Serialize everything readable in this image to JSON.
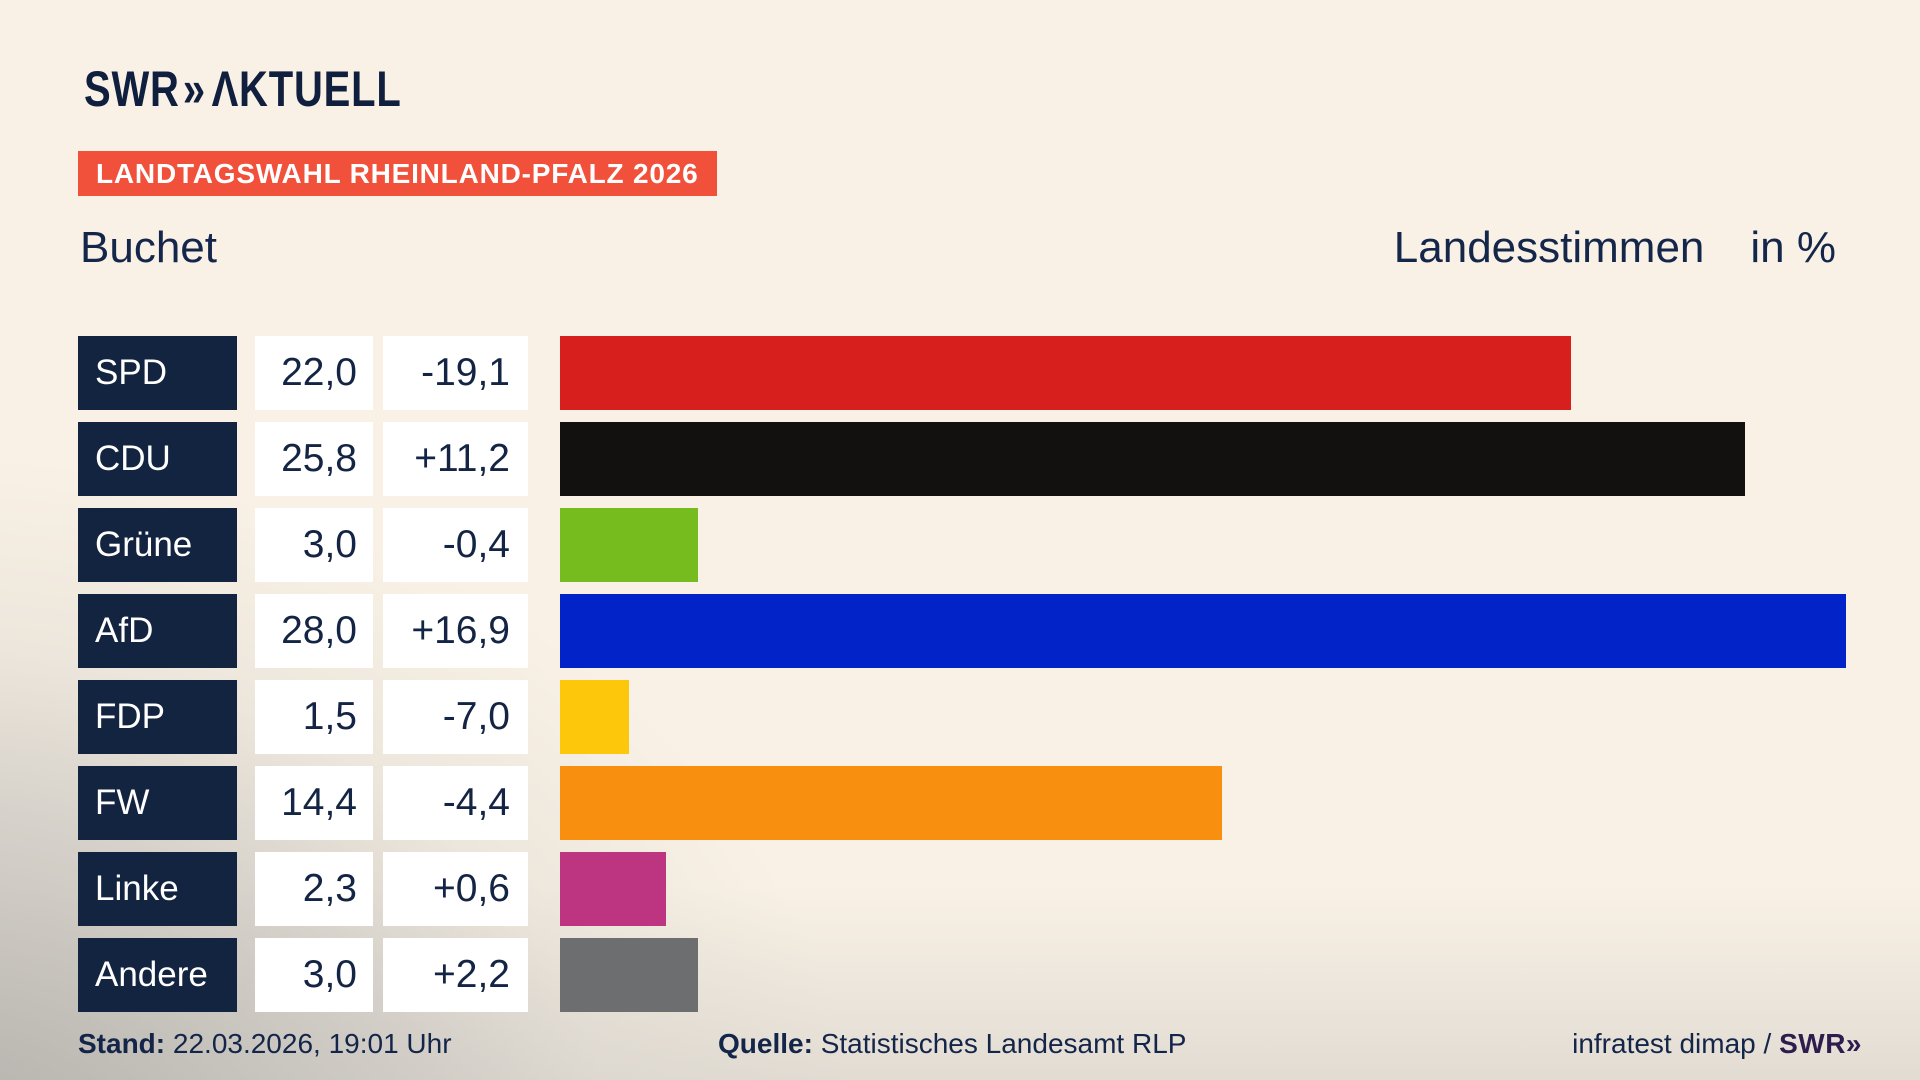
{
  "header": {
    "logo_swr": "SWR",
    "logo_chevrons": "»",
    "logo_aktuell": "ΛKTUELL",
    "banner": "LANDTAGSWAHL RHEINLAND-PFALZ 2026",
    "title_left": "Buchet",
    "title_right_main": "Landesstimmen",
    "title_right_unit": "in %"
  },
  "chart_data": {
    "type": "bar",
    "orientation": "horizontal",
    "title": "Landtagswahl Rheinland-Pfalz 2026 — Buchet — Landesstimmen in %",
    "unit": "%",
    "xlim": [
      0,
      29.6
    ],
    "grid": false,
    "legend": false,
    "categories": [
      "SPD",
      "CDU",
      "Grüne",
      "AfD",
      "FDP",
      "FW",
      "Linke",
      "Andere"
    ],
    "values": [
      22.0,
      25.8,
      3.0,
      28.0,
      1.5,
      14.4,
      2.3,
      3.0
    ],
    "value_labels": [
      "22,0",
      "25,8",
      "3,0",
      "28,0",
      "1,5",
      "14,4",
      "2,3",
      "3,0"
    ],
    "change_labels": [
      "-19,1",
      "+11,2",
      "-0,4",
      "+16,9",
      "-7,0",
      "-4,4",
      "+0,6",
      "+2,2"
    ],
    "bar_colors": [
      "#d71f1e",
      "#131110",
      "#76bc1e",
      "#0223c8",
      "#fdc80c",
      "#f98f0e",
      "#bd3480",
      "#6d6e70"
    ]
  },
  "footer": {
    "stand_label": "Stand:",
    "stand_value": " 22.03.2026, 19:01 Uhr",
    "quelle_label": "Quelle:",
    "quelle_value": " Statistisches Landesamt RLP",
    "credit_text": "infratest dimap / ",
    "credit_logo": "SWR»"
  },
  "colors": {
    "background_cream": "#f9f1e5",
    "background_gray": "#c5c2bd",
    "banner_red": "#f1503b",
    "navy_text": "#15264b",
    "party_cell_navy": "#132440",
    "value_cell_white": "#ffffff",
    "logo_navy": "#101f3e",
    "credit_purple": "#2c1d4e"
  }
}
